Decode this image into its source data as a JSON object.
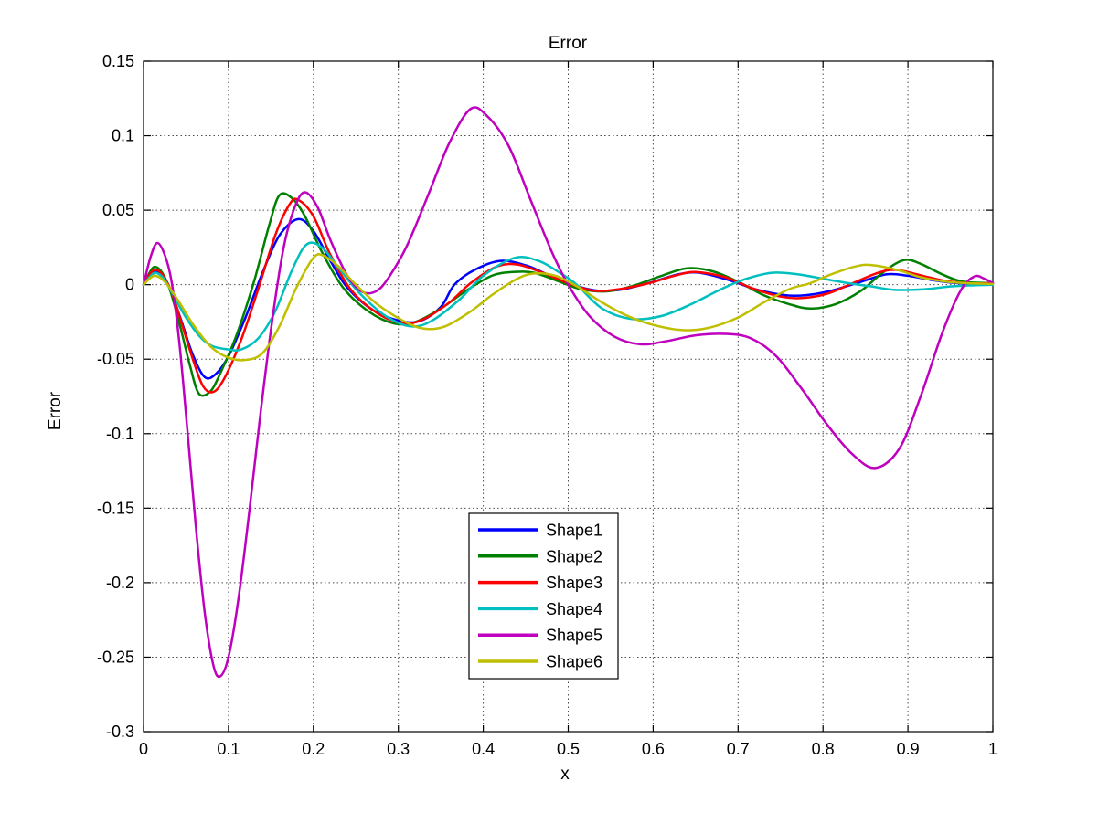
{
  "chart_data": {
    "type": "line",
    "title": "Error",
    "xlabel": "x",
    "ylabel": "Error",
    "xlim": [
      0,
      1
    ],
    "ylim": [
      -0.3,
      0.15
    ],
    "xtick_values": [
      0,
      0.1,
      0.2,
      0.3,
      0.4,
      0.5,
      0.6,
      0.7,
      0.8,
      0.9,
      1
    ],
    "xtick_labels": [
      "0",
      "0.1",
      "0.2",
      "0.3",
      "0.4",
      "0.5",
      "0.6",
      "0.7",
      "0.8",
      "0.9",
      "1"
    ],
    "ytick_values": [
      -0.3,
      -0.25,
      -0.2,
      -0.15,
      -0.1,
      -0.05,
      0,
      0.05,
      0.1,
      0.15
    ],
    "ytick_labels": [
      "-0.3",
      "-0.25",
      "-0.2",
      "-0.15",
      "-0.1",
      "-0.05",
      "0",
      "0.05",
      "0.1",
      "0.15"
    ],
    "grid": true,
    "legend_position": "inside-bottom-center",
    "series": [
      {
        "name": "Shape1",
        "color": "#0000FF",
        "points": [
          [
            0,
            0
          ],
          [
            0.006,
            0.005
          ],
          [
            0.013,
            0.009
          ],
          [
            0.022,
            0.006
          ],
          [
            0.032,
            -0.004
          ],
          [
            0.045,
            -0.025
          ],
          [
            0.058,
            -0.047
          ],
          [
            0.072,
            -0.062
          ],
          [
            0.085,
            -0.06
          ],
          [
            0.1,
            -0.048
          ],
          [
            0.12,
            -0.022
          ],
          [
            0.14,
            0.008
          ],
          [
            0.16,
            0.033
          ],
          [
            0.182,
            0.044
          ],
          [
            0.2,
            0.036
          ],
          [
            0.22,
            0.016
          ],
          [
            0.24,
            -0.002
          ],
          [
            0.27,
            -0.017
          ],
          [
            0.3,
            -0.024
          ],
          [
            0.325,
            -0.0245
          ],
          [
            0.35,
            -0.015
          ],
          [
            0.366,
            0
          ],
          [
            0.39,
            0.01
          ],
          [
            0.42,
            0.016
          ],
          [
            0.45,
            0.013
          ],
          [
            0.475,
            0.007
          ],
          [
            0.505,
            0
          ],
          [
            0.535,
            -0.004
          ],
          [
            0.565,
            -0.003
          ],
          [
            0.6,
            0.002
          ],
          [
            0.63,
            0.007
          ],
          [
            0.655,
            0.008
          ],
          [
            0.69,
            0.003
          ],
          [
            0.72,
            -0.003
          ],
          [
            0.755,
            -0.007
          ],
          [
            0.78,
            -0.007
          ],
          [
            0.81,
            -0.004
          ],
          [
            0.845,
            0.002
          ],
          [
            0.875,
            0.007
          ],
          [
            0.9,
            0.006
          ],
          [
            0.93,
            0.003
          ],
          [
            0.96,
            0.001
          ],
          [
            1,
            0.001
          ]
        ]
      },
      {
        "name": "Shape2",
        "color": "#008000",
        "points": [
          [
            0,
            0
          ],
          [
            0.006,
            0.007
          ],
          [
            0.013,
            0.012
          ],
          [
            0.022,
            0.008
          ],
          [
            0.032,
            -0.005
          ],
          [
            0.044,
            -0.03
          ],
          [
            0.055,
            -0.055
          ],
          [
            0.065,
            -0.073
          ],
          [
            0.078,
            -0.072
          ],
          [
            0.09,
            -0.06
          ],
          [
            0.11,
            -0.033
          ],
          [
            0.13,
            0.002
          ],
          [
            0.148,
            0.04
          ],
          [
            0.16,
            0.06
          ],
          [
            0.175,
            0.058
          ],
          [
            0.19,
            0.046
          ],
          [
            0.21,
            0.022
          ],
          [
            0.235,
            -0.002
          ],
          [
            0.265,
            -0.018
          ],
          [
            0.295,
            -0.026
          ],
          [
            0.32,
            -0.025
          ],
          [
            0.35,
            -0.016
          ],
          [
            0.38,
            -0.004
          ],
          [
            0.41,
            0.006
          ],
          [
            0.435,
            0.0085
          ],
          [
            0.46,
            0.008
          ],
          [
            0.49,
            0.002
          ],
          [
            0.515,
            -0.003
          ],
          [
            0.545,
            -0.0045
          ],
          [
            0.575,
            -0.001
          ],
          [
            0.61,
            0.006
          ],
          [
            0.64,
            0.011
          ],
          [
            0.67,
            0.009
          ],
          [
            0.7,
            0.002
          ],
          [
            0.73,
            -0.007
          ],
          [
            0.76,
            -0.013
          ],
          [
            0.785,
            -0.016
          ],
          [
            0.815,
            -0.013
          ],
          [
            0.845,
            -0.004
          ],
          [
            0.87,
            0.008
          ],
          [
            0.895,
            0.0165
          ],
          [
            0.915,
            0.014
          ],
          [
            0.94,
            0.007
          ],
          [
            0.965,
            0.002
          ],
          [
            1,
            0.001
          ]
        ]
      },
      {
        "name": "Shape3",
        "color": "#FF0000",
        "points": [
          [
            0,
            0
          ],
          [
            0.006,
            0.006
          ],
          [
            0.013,
            0.01
          ],
          [
            0.022,
            0.007
          ],
          [
            0.033,
            -0.005
          ],
          [
            0.046,
            -0.028
          ],
          [
            0.058,
            -0.05
          ],
          [
            0.07,
            -0.068
          ],
          [
            0.082,
            -0.072
          ],
          [
            0.095,
            -0.063
          ],
          [
            0.115,
            -0.037
          ],
          [
            0.135,
            -0.003
          ],
          [
            0.155,
            0.033
          ],
          [
            0.172,
            0.054
          ],
          [
            0.182,
            0.057
          ],
          [
            0.2,
            0.046
          ],
          [
            0.22,
            0.02
          ],
          [
            0.245,
            -0.004
          ],
          [
            0.275,
            -0.019
          ],
          [
            0.305,
            -0.026
          ],
          [
            0.33,
            -0.023
          ],
          [
            0.36,
            -0.012
          ],
          [
            0.385,
            0.001
          ],
          [
            0.415,
            0.012
          ],
          [
            0.44,
            0.0135
          ],
          [
            0.47,
            0.008
          ],
          [
            0.5,
            0.001
          ],
          [
            0.53,
            -0.004
          ],
          [
            0.56,
            -0.003
          ],
          [
            0.595,
            0.001
          ],
          [
            0.625,
            0.006
          ],
          [
            0.65,
            0.0085
          ],
          [
            0.685,
            0.005
          ],
          [
            0.715,
            -0.002
          ],
          [
            0.75,
            -0.008
          ],
          [
            0.775,
            -0.009
          ],
          [
            0.805,
            -0.006
          ],
          [
            0.835,
            0.001
          ],
          [
            0.865,
            0.008
          ],
          [
            0.885,
            0.01
          ],
          [
            0.91,
            0.007
          ],
          [
            0.94,
            0.003
          ],
          [
            0.97,
            0.001
          ],
          [
            1,
            0.001
          ]
        ]
      },
      {
        "name": "Shape4",
        "color": "#00BFBF",
        "points": [
          [
            0,
            0
          ],
          [
            0.007,
            0.005
          ],
          [
            0.014,
            0.008
          ],
          [
            0.024,
            0.004
          ],
          [
            0.036,
            -0.008
          ],
          [
            0.05,
            -0.022
          ],
          [
            0.065,
            -0.034
          ],
          [
            0.08,
            -0.041
          ],
          [
            0.1,
            -0.0435
          ],
          [
            0.115,
            -0.0435
          ],
          [
            0.135,
            -0.036
          ],
          [
            0.155,
            -0.018
          ],
          [
            0.175,
            0.01
          ],
          [
            0.192,
            0.027
          ],
          [
            0.21,
            0.025
          ],
          [
            0.23,
            0.011
          ],
          [
            0.255,
            -0.006
          ],
          [
            0.285,
            -0.021
          ],
          [
            0.315,
            -0.028
          ],
          [
            0.34,
            -0.024
          ],
          [
            0.372,
            -0.01
          ],
          [
            0.4,
            0.006
          ],
          [
            0.437,
            0.018
          ],
          [
            0.465,
            0.016
          ],
          [
            0.49,
            0.008
          ],
          [
            0.51,
            0
          ],
          [
            0.54,
            -0.016
          ],
          [
            0.575,
            -0.023
          ],
          [
            0.61,
            -0.021
          ],
          [
            0.645,
            -0.013
          ],
          [
            0.68,
            -0.003
          ],
          [
            0.71,
            0.004
          ],
          [
            0.74,
            0.008
          ],
          [
            0.77,
            0.007
          ],
          [
            0.8,
            0.004
          ],
          [
            0.83,
            0.001
          ],
          [
            0.855,
            -0.001
          ],
          [
            0.885,
            -0.0035
          ],
          [
            0.92,
            -0.003
          ],
          [
            0.955,
            -0.001
          ],
          [
            1,
            0
          ]
        ]
      },
      {
        "name": "Shape5",
        "color": "#BF00BF",
        "points": [
          [
            0,
            0
          ],
          [
            0.008,
            0.018
          ],
          [
            0.016,
            0.028
          ],
          [
            0.025,
            0.02
          ],
          [
            0.033,
            0.002
          ],
          [
            0.042,
            -0.038
          ],
          [
            0.052,
            -0.1
          ],
          [
            0.062,
            -0.165
          ],
          [
            0.072,
            -0.22
          ],
          [
            0.082,
            -0.255
          ],
          [
            0.09,
            -0.263
          ],
          [
            0.1,
            -0.25
          ],
          [
            0.112,
            -0.21
          ],
          [
            0.125,
            -0.15
          ],
          [
            0.138,
            -0.085
          ],
          [
            0.152,
            -0.022
          ],
          [
            0.165,
            0.025
          ],
          [
            0.178,
            0.052
          ],
          [
            0.19,
            0.062
          ],
          [
            0.205,
            0.052
          ],
          [
            0.22,
            0.03
          ],
          [
            0.24,
            0.006
          ],
          [
            0.258,
            -0.005
          ],
          [
            0.275,
            -0.004
          ],
          [
            0.29,
            0.006
          ],
          [
            0.31,
            0.026
          ],
          [
            0.335,
            0.06
          ],
          [
            0.36,
            0.095
          ],
          [
            0.385,
            0.118
          ],
          [
            0.405,
            0.113
          ],
          [
            0.43,
            0.093
          ],
          [
            0.455,
            0.058
          ],
          [
            0.48,
            0.023
          ],
          [
            0.5,
            0
          ],
          [
            0.525,
            -0.021
          ],
          [
            0.555,
            -0.035
          ],
          [
            0.585,
            -0.04
          ],
          [
            0.615,
            -0.038
          ],
          [
            0.65,
            -0.034
          ],
          [
            0.685,
            -0.033
          ],
          [
            0.715,
            -0.036
          ],
          [
            0.745,
            -0.048
          ],
          [
            0.775,
            -0.07
          ],
          [
            0.805,
            -0.094
          ],
          [
            0.835,
            -0.114
          ],
          [
            0.862,
            -0.123
          ],
          [
            0.89,
            -0.11
          ],
          [
            0.915,
            -0.075
          ],
          [
            0.94,
            -0.033
          ],
          [
            0.962,
            -0.004
          ],
          [
            0.978,
            0.0055
          ],
          [
            0.99,
            0.004
          ],
          [
            1,
            0.001
          ]
        ]
      },
      {
        "name": "Shape6",
        "color": "#BFBF00",
        "points": [
          [
            0,
            0
          ],
          [
            0.007,
            0.004
          ],
          [
            0.014,
            0.006
          ],
          [
            0.025,
            0.002
          ],
          [
            0.04,
            -0.01
          ],
          [
            0.06,
            -0.028
          ],
          [
            0.08,
            -0.042
          ],
          [
            0.1,
            -0.049
          ],
          [
            0.12,
            -0.0505
          ],
          [
            0.14,
            -0.046
          ],
          [
            0.16,
            -0.028
          ],
          [
            0.18,
            -0.002
          ],
          [
            0.2,
            0.018
          ],
          [
            0.212,
            0.0195
          ],
          [
            0.23,
            0.012
          ],
          [
            0.25,
            0
          ],
          [
            0.275,
            -0.013
          ],
          [
            0.305,
            -0.024
          ],
          [
            0.33,
            -0.0295
          ],
          [
            0.355,
            -0.028
          ],
          [
            0.385,
            -0.018
          ],
          [
            0.41,
            -0.007
          ],
          [
            0.44,
            0.004
          ],
          [
            0.46,
            0.0075
          ],
          [
            0.485,
            0.006
          ],
          [
            0.51,
            -0.001
          ],
          [
            0.54,
            -0.012
          ],
          [
            0.57,
            -0.021
          ],
          [
            0.6,
            -0.027
          ],
          [
            0.635,
            -0.0305
          ],
          [
            0.665,
            -0.029
          ],
          [
            0.7,
            -0.022
          ],
          [
            0.73,
            -0.012
          ],
          [
            0.76,
            -0.003
          ],
          [
            0.785,
            0.001
          ],
          [
            0.81,
            0.007
          ],
          [
            0.84,
            0.0125
          ],
          [
            0.86,
            0.013
          ],
          [
            0.89,
            0.0095
          ],
          [
            0.915,
            0.005
          ],
          [
            0.945,
            0.002
          ],
          [
            0.97,
            0.001
          ],
          [
            1,
            0.0005
          ]
        ]
      }
    ]
  }
}
